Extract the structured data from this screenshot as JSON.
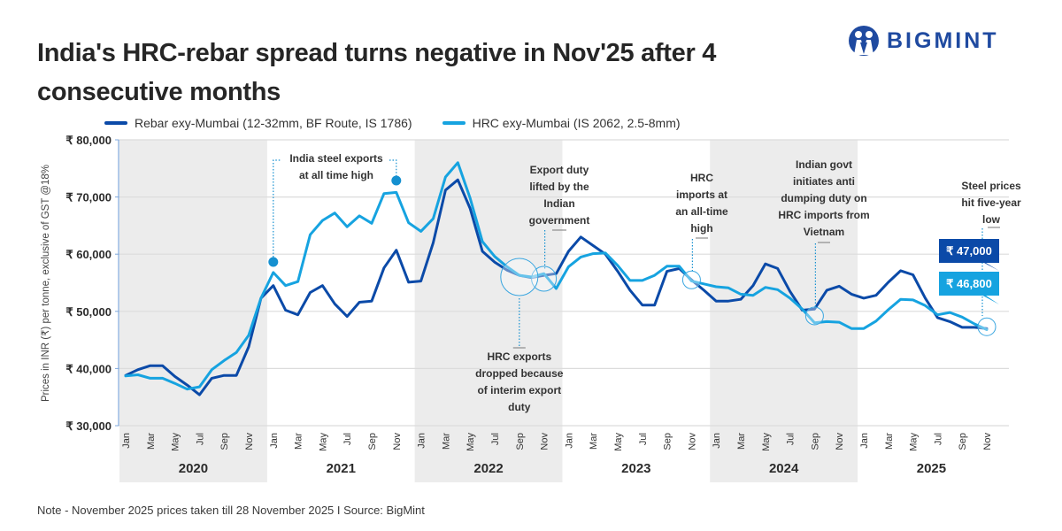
{
  "header": {
    "title": "India's HRC-rebar spread turns negative in Nov'25 after 4 consecutive months",
    "logo_text": "BIGMINT"
  },
  "legend": [
    {
      "label": "Rebar exy-Mumbai (12-32mm, BF Route, IS 1786)",
      "color": "#0b4aa8"
    },
    {
      "label": "HRC exy-Mumbai (IS 2062, 2.5-8mm)",
      "color": "#16a3e0"
    }
  ],
  "footer": {
    "note": "Note - November 2025 prices taken till  28 November 2025  I  Source: BigMint"
  },
  "chart_data": {
    "type": "line",
    "title": "India's HRC-rebar spread turns negative in Nov'25 after 4 consecutive months",
    "xlabel": "",
    "ylabel": "Prices in INR (₹) per tonne, exclusive of GST @18%",
    "ylim": [
      30000,
      80000
    ],
    "yticks": [
      30000,
      40000,
      50000,
      60000,
      70000,
      80000
    ],
    "ytick_labels": [
      "₹ 30,000",
      "₹ 40,000",
      "₹ 50,000",
      "₹ 60,000",
      "₹ 70,000",
      "₹ 80,000"
    ],
    "grid": true,
    "legend_position": "top",
    "years": [
      "2020",
      "2021",
      "2022",
      "2023",
      "2024",
      "2025"
    ],
    "month_tick_labels": [
      "Jan",
      "Mar",
      "May",
      "Jul",
      "Sep",
      "Nov"
    ],
    "x_start": "Jan 2020",
    "x_end": "Nov 2025",
    "series": [
      {
        "name": "Rebar exy-Mumbai (12-32mm, BF Route, IS 1786)",
        "color": "#0b4aa8",
        "values": [
          38800,
          39800,
          40500,
          40500,
          38600,
          37100,
          35400,
          38300,
          38800,
          38800,
          43800,
          52300,
          54500,
          50200,
          49400,
          53300,
          54500,
          51300,
          49100,
          51600,
          51800,
          57600,
          60700,
          55100,
          55300,
          62000,
          71200,
          73000,
          68000,
          60500,
          58600,
          57200,
          56300,
          55900,
          56300,
          56600,
          60500,
          63000,
          61500,
          60000,
          57000,
          53700,
          51100,
          51100,
          57000,
          57500,
          55500,
          53700,
          51800,
          51800,
          52100,
          54500,
          58300,
          57500,
          53500,
          50200,
          50400,
          53700,
          54400,
          53000,
          52300,
          52800,
          55100,
          57100,
          56400,
          52300,
          48900,
          48200,
          47200,
          47200,
          47000
        ],
        "last_label": "₹ 47,000"
      },
      {
        "name": "HRC exy-Mumbai (IS 2062, 2.5-8mm)",
        "color": "#16a3e0",
        "values": [
          38700,
          38900,
          38300,
          38300,
          37400,
          36400,
          36800,
          39800,
          41400,
          42800,
          45800,
          52300,
          56800,
          54500,
          55200,
          63400,
          65900,
          67200,
          64800,
          66700,
          65400,
          70600,
          70800,
          65500,
          64000,
          66200,
          73500,
          76000,
          69800,
          62200,
          59600,
          57800,
          56300,
          56000,
          56600,
          54000,
          57800,
          59500,
          60100,
          60200,
          58000,
          55400,
          55400,
          56300,
          57900,
          57900,
          55300,
          54800,
          54300,
          54100,
          53000,
          52800,
          54200,
          53800,
          52300,
          50400,
          48000,
          48200,
          48100,
          47000,
          47000,
          48300,
          50300,
          52100,
          52000,
          51000,
          49400,
          49800,
          49000,
          47800,
          46800
        ],
        "last_label": "₹ 46,800"
      }
    ],
    "annotations": [
      {
        "text": [
          "India steel exports",
          "at all time high"
        ],
        "points": [
          "Jan 2021",
          "Nov 2021"
        ]
      },
      {
        "text": [
          "Export duty",
          "lifted by the",
          "Indian",
          "government"
        ],
        "point": "Nov 2022"
      },
      {
        "text": [
          "HRC exports",
          "dropped because",
          "of interim export",
          "duty"
        ],
        "point": "Sep 2022"
      },
      {
        "text": [
          "HRC",
          "imports at",
          "an all-time",
          "high"
        ],
        "point": "Nov 2023"
      },
      {
        "text": [
          "Indian govt",
          "initiates anti",
          "dumping duty on",
          "HRC imports from",
          "Vietnam"
        ],
        "point": "Sep 2024"
      },
      {
        "text": [
          "Steel prices",
          "hit five-year",
          "low"
        ],
        "point": "Nov 2025"
      }
    ]
  }
}
